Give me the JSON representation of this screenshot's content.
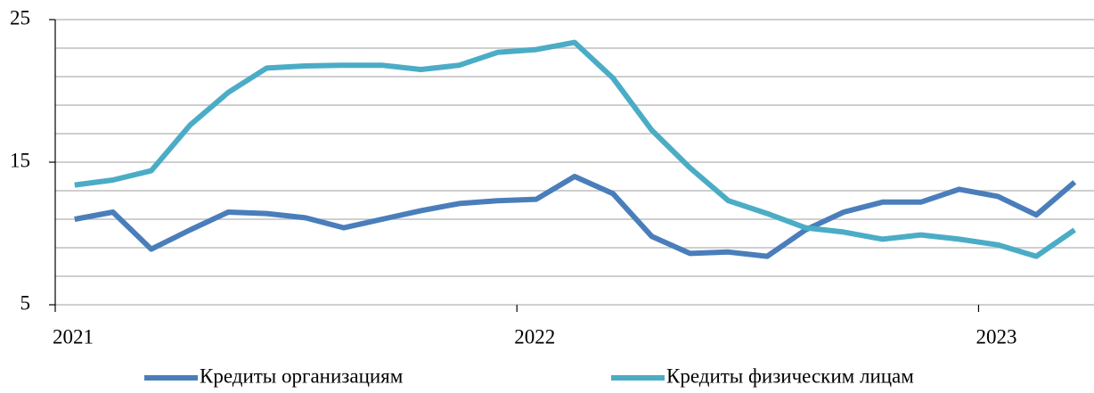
{
  "chart_data": {
    "type": "line",
    "x": [
      2021.042,
      2021.125,
      2021.208,
      2021.292,
      2021.375,
      2021.458,
      2021.542,
      2021.625,
      2021.708,
      2021.792,
      2021.875,
      2021.958,
      2022.042,
      2022.125,
      2022.208,
      2022.292,
      2022.375,
      2022.458,
      2022.542,
      2022.625,
      2022.708,
      2022.792,
      2022.875,
      2022.958,
      2023.042,
      2023.125,
      2023.208
    ],
    "series": [
      {
        "name": "Кредиты организациям",
        "color": "#4a7ebb",
        "values": [
          11.0,
          11.5,
          8.9,
          10.25,
          11.5,
          11.4,
          11.1,
          10.4,
          11.0,
          11.6,
          12.1,
          12.3,
          12.4,
          14.0,
          12.8,
          9.8,
          8.6,
          8.7,
          8.4,
          10.25,
          11.5,
          12.2,
          12.2,
          13.1,
          12.6,
          11.3,
          13.6
        ]
      },
      {
        "name": "Кредиты физическим лицам",
        "color": "#4bacc6",
        "values": [
          13.4,
          13.75,
          14.4,
          17.6,
          19.9,
          21.6,
          21.75,
          21.8,
          21.8,
          21.5,
          21.8,
          22.7,
          22.9,
          23.4,
          20.9,
          17.25,
          14.6,
          12.3,
          11.4,
          10.4,
          10.1,
          9.6,
          9.9,
          9.6,
          9.2,
          8.4,
          10.25
        ]
      }
    ],
    "xlim": [
      2021,
      2023.25
    ],
    "xticks": [
      2021,
      2022,
      2023
    ],
    "ylim": [
      5,
      25
    ],
    "yticks": [
      5,
      15,
      25
    ],
    "minor_yticks": [
      7,
      9,
      11,
      13,
      17,
      19,
      21,
      23
    ],
    "grid": true,
    "legend": "bottom"
  }
}
